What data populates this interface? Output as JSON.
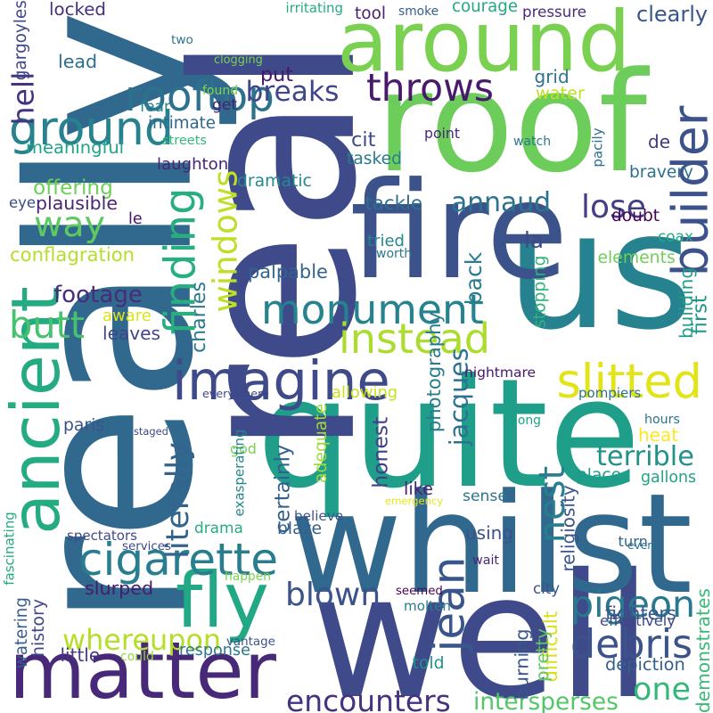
{
  "background": "#ffffff",
  "words": [
    {
      "text": "really",
      "color": "#31688e"
    },
    {
      "text": "well",
      "color": "#3e4a89"
    },
    {
      "text": "quite",
      "color": "#1f9e89"
    },
    {
      "text": "roof",
      "color": "#6ccd5a"
    },
    {
      "text": "us",
      "color": "#26828e"
    },
    {
      "text": "real",
      "color": "#3e4a89"
    },
    {
      "text": "fire",
      "color": "#3b528b"
    },
    {
      "text": "whilst",
      "color": "#31688e"
    },
    {
      "text": "around",
      "color": "#7ad151"
    },
    {
      "text": "matter",
      "color": "#482878"
    },
    {
      "text": "ancient",
      "color": "#25ab82"
    },
    {
      "text": "imagine",
      "color": "#3e4a89"
    },
    {
      "text": "builder",
      "color": "#3b528b"
    },
    {
      "text": "monument",
      "color": "#26828e"
    },
    {
      "text": "fly",
      "color": "#22a884"
    },
    {
      "text": "rooftop",
      "color": "#2c728e"
    },
    {
      "text": "cigarette",
      "color": "#287d8e"
    },
    {
      "text": "instead",
      "color": "#addc30"
    },
    {
      "text": "throws",
      "color": "#481a6c"
    },
    {
      "text": "slitted",
      "color": "#e2e418"
    },
    {
      "text": "ground",
      "color": "#26828e"
    },
    {
      "text": "blown",
      "color": "#3b528b"
    },
    {
      "text": "way",
      "color": "#5ec962"
    },
    {
      "text": "butt",
      "color": "#48c16e"
    },
    {
      "text": "finding",
      "color": "#29af7f"
    },
    {
      "text": "windows",
      "color": "#bddf26"
    },
    {
      "text": "pigeon",
      "color": "#2a788e"
    },
    {
      "text": "debris",
      "color": "#3b528b"
    },
    {
      "text": "one",
      "color": "#35b779"
    },
    {
      "text": "jean",
      "color": "#39568c"
    },
    {
      "text": "whereupon",
      "color": "#b5de2b"
    },
    {
      "text": "encounters",
      "color": "#46327e"
    },
    {
      "text": "annaud",
      "color": "#2c728e"
    },
    {
      "text": "breaks",
      "color": "#404688"
    },
    {
      "text": "lose",
      "color": "#433e85"
    },
    {
      "text": "jacques",
      "color": "#2c728e"
    },
    {
      "text": "nest",
      "color": "#287d8e"
    },
    {
      "text": "literally",
      "color": "#32648e"
    },
    {
      "text": "footage",
      "color": "#472d7b"
    },
    {
      "text": "intersperses",
      "color": "#54c568"
    },
    {
      "text": "terrible",
      "color": "#21918c"
    },
    {
      "text": "hell",
      "color": "#46337f"
    },
    {
      "text": "offering",
      "color": "#6ece58"
    },
    {
      "text": "locked",
      "color": "#46307e"
    },
    {
      "text": "courage",
      "color": "#22a884"
    },
    {
      "text": "pressure",
      "color": "#472c7a"
    },
    {
      "text": "clearly",
      "color": "#39568c"
    },
    {
      "text": "smoke",
      "color": "#355f8d"
    },
    {
      "text": "tool",
      "color": "#482071"
    },
    {
      "text": "gargoyles",
      "color": "#3f4889"
    },
    {
      "text": "lead",
      "color": "#2d708e"
    },
    {
      "text": "put",
      "color": "#48186a"
    },
    {
      "text": "grid",
      "color": "#2c728e"
    },
    {
      "text": "water",
      "color": "#bddf26"
    },
    {
      "text": "fear",
      "color": "#26828e"
    },
    {
      "text": "get",
      "color": "#482173"
    },
    {
      "text": "intimate",
      "color": "#31688e"
    },
    {
      "text": "meaningful",
      "color": "#20a386"
    },
    {
      "text": "streets",
      "color": "#35b779"
    },
    {
      "text": "cit",
      "color": "#3e4a89"
    },
    {
      "text": "tasked",
      "color": "#287d8e"
    },
    {
      "text": "laughton",
      "color": "#482475"
    },
    {
      "text": "bravery",
      "color": "#2d708e"
    },
    {
      "text": "de",
      "color": "#453882"
    },
    {
      "text": "dramatic",
      "color": "#23898e"
    },
    {
      "text": "eye",
      "color": "#3d4d8a"
    },
    {
      "text": "plausible",
      "color": "#482576"
    },
    {
      "text": "le",
      "color": "#471365"
    },
    {
      "text": "conflagration",
      "color": "#b5de2b"
    },
    {
      "text": "tackle",
      "color": "#2d708e"
    },
    {
      "text": "doubt",
      "color": "#440154"
    },
    {
      "text": "coax",
      "color": "#22a884"
    },
    {
      "text": "tried",
      "color": "#24868e"
    },
    {
      "text": "la",
      "color": "#3e4989"
    },
    {
      "text": "elements",
      "color": "#6ece58"
    },
    {
      "text": "palpable",
      "color": "#32648e"
    },
    {
      "text": "back",
      "color": "#287d8e"
    },
    {
      "text": "aware",
      "color": "#dde318"
    },
    {
      "text": "charles",
      "color": "#2a788e"
    },
    {
      "text": "leaves",
      "color": "#404688"
    },
    {
      "text": "stopping",
      "color": "#2fb47c"
    },
    {
      "text": "building",
      "color": "#1f9e89"
    },
    {
      "text": "first",
      "color": "#1f968b"
    },
    {
      "text": "photography",
      "color": "#287d8e"
    },
    {
      "text": "nightmare",
      "color": "#481769"
    },
    {
      "text": "allowing",
      "color": "#c8e020"
    },
    {
      "text": "pompiers",
      "color": "#2c728e"
    },
    {
      "text": "paris",
      "color": "#3b528b"
    },
    {
      "text": "honest",
      "color": "#424086"
    },
    {
      "text": "heat",
      "color": "#fde725"
    },
    {
      "text": "staged",
      "color": "#3e4a89"
    },
    {
      "text": "god",
      "color": "#7ad151"
    },
    {
      "text": "adequate",
      "color": "#a2da37"
    },
    {
      "text": "certainly",
      "color": "#355f8d"
    },
    {
      "text": "place",
      "color": "#1e9b8a"
    },
    {
      "text": "gallons",
      "color": "#20a386"
    },
    {
      "text": "like",
      "color": "#482071"
    },
    {
      "text": "sense",
      "color": "#2c738e"
    },
    {
      "text": "believe",
      "color": "#3b528b"
    },
    {
      "text": "blaze",
      "color": "#355f8d"
    },
    {
      "text": "drama",
      "color": "#27ad81"
    },
    {
      "text": "using",
      "color": "#3b528b"
    },
    {
      "text": "religiosity",
      "color": "#3a548c"
    },
    {
      "text": "seemed",
      "color": "#450457"
    },
    {
      "text": "city",
      "color": "#3b528b"
    },
    {
      "text": "turn",
      "color": "#32658e"
    },
    {
      "text": "molten",
      "color": "#287d8e"
    },
    {
      "text": "fighters",
      "color": "#39568c"
    },
    {
      "text": "difficult",
      "color": "#d8e219"
    },
    {
      "text": "pretty",
      "color": "#5ec962"
    },
    {
      "text": "burning",
      "color": "#39568c"
    },
    {
      "text": "little",
      "color": "#453781"
    },
    {
      "text": "history",
      "color": "#404688"
    },
    {
      "text": "watering",
      "color": "#365d8d"
    },
    {
      "text": "response",
      "color": "#2a788e"
    },
    {
      "text": "told",
      "color": "#20928c"
    },
    {
      "text": "depiction",
      "color": "#355f8d"
    },
    {
      "text": "effectively",
      "color": "#3f4788"
    },
    {
      "text": "demonstrates",
      "color": "#3aba76"
    },
    {
      "text": "slurped",
      "color": "#481b6d"
    },
    {
      "text": "happen",
      "color": "#7ad151"
    },
    {
      "text": "vantage",
      "color": "#3b528b"
    },
    {
      "text": "could",
      "color": "#95d840"
    },
    {
      "text": "everywhere",
      "color": "#3f4788"
    },
    {
      "text": "hours",
      "color": "#2c728e"
    },
    {
      "text": "long",
      "color": "#20a386"
    },
    {
      "text": "emergency",
      "color": "#e5e419"
    },
    {
      "text": "exasperating",
      "color": "#25858e"
    },
    {
      "text": "wait",
      "color": "#482677"
    },
    {
      "text": "even",
      "color": "#2c728e"
    },
    {
      "text": "services",
      "color": "#3f4788"
    },
    {
      "text": "spectators",
      "color": "#3e4a89"
    },
    {
      "text": "fascinating",
      "color": "#25ab82"
    },
    {
      "text": "irritating",
      "color": "#25ab82"
    },
    {
      "text": "two",
      "color": "#2d708e"
    },
    {
      "text": "clogging",
      "color": "#7ad151"
    },
    {
      "text": "found",
      "color": "#7fd34e"
    },
    {
      "text": "point",
      "color": "#482878"
    },
    {
      "text": "watch",
      "color": "#2a788e"
    },
    {
      "text": "pacily",
      "color": "#2d708e"
    },
    {
      "text": "worth",
      "color": "#2a788e"
    }
  ]
}
